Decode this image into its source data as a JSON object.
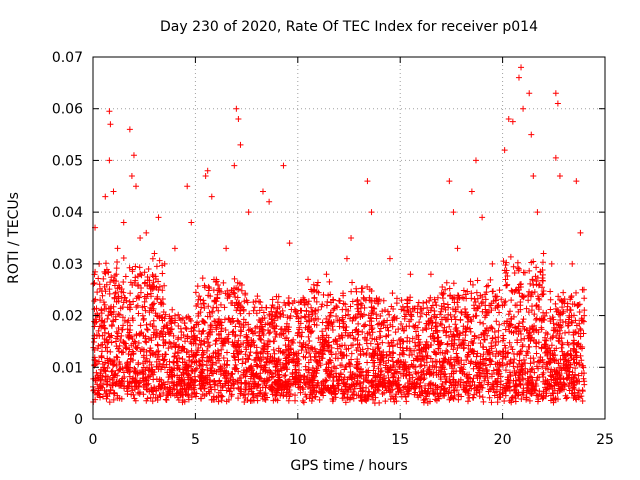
{
  "chart_data": {
    "type": "scatter",
    "title": "Day 230 of 2020, Rate Of TEC Index for receiver p014",
    "xlabel": "GPS time / hours",
    "ylabel": "ROTI / TECUs",
    "xlim": [
      0,
      25
    ],
    "ylim": [
      0,
      0.07
    ],
    "xticks": [
      0,
      5,
      10,
      15,
      20,
      25
    ],
    "xtick_labels": [
      "0",
      "5",
      "10",
      "15",
      "20",
      "25"
    ],
    "yticks": [
      0,
      0.01,
      0.02,
      0.03,
      0.04,
      0.05,
      0.06,
      0.07
    ],
    "ytick_labels": [
      "0",
      "0.01",
      "0.02",
      "0.03",
      "0.04",
      "0.05",
      "0.06",
      "0.07"
    ],
    "grid": true,
    "marker": "+",
    "series_color": "#ff0000",
    "data_x_range": [
      0,
      24
    ],
    "points": [
      [
        0.1,
        0.037
      ],
      [
        0.3,
        0.03
      ],
      [
        0.4,
        0.021
      ],
      [
        0.6,
        0.043
      ],
      [
        0.8,
        0.0595
      ],
      [
        0.85,
        0.057
      ],
      [
        0.8,
        0.05
      ],
      [
        1.0,
        0.044
      ],
      [
        1.2,
        0.033
      ],
      [
        1.3,
        0.004
      ],
      [
        1.5,
        0.038
      ],
      [
        1.8,
        0.056
      ],
      [
        1.9,
        0.047
      ],
      [
        2.0,
        0.051
      ],
      [
        2.1,
        0.045
      ],
      [
        2.3,
        0.035
      ],
      [
        2.6,
        0.036
      ],
      [
        3.0,
        0.032
      ],
      [
        3.2,
        0.039
      ],
      [
        3.5,
        0.03
      ],
      [
        4.0,
        0.033
      ],
      [
        4.6,
        0.045
      ],
      [
        4.8,
        0.038
      ],
      [
        5.5,
        0.047
      ],
      [
        5.6,
        0.048
      ],
      [
        5.8,
        0.043
      ],
      [
        6.5,
        0.033
      ],
      [
        6.9,
        0.049
      ],
      [
        7.0,
        0.06
      ],
      [
        7.1,
        0.058
      ],
      [
        7.2,
        0.053
      ],
      [
        7.6,
        0.04
      ],
      [
        8.3,
        0.044
      ],
      [
        8.6,
        0.042
      ],
      [
        9.3,
        0.049
      ],
      [
        9.6,
        0.034
      ],
      [
        10.5,
        0.027
      ],
      [
        11.4,
        0.028
      ],
      [
        12.4,
        0.031
      ],
      [
        12.6,
        0.035
      ],
      [
        13.4,
        0.046
      ],
      [
        13.6,
        0.04
      ],
      [
        14.5,
        0.031
      ],
      [
        15.5,
        0.028
      ],
      [
        16.5,
        0.028
      ],
      [
        17.4,
        0.046
      ],
      [
        17.6,
        0.04
      ],
      [
        17.8,
        0.033
      ],
      [
        18.5,
        0.044
      ],
      [
        18.7,
        0.05
      ],
      [
        19.0,
        0.039
      ],
      [
        19.5,
        0.03
      ],
      [
        20.1,
        0.052
      ],
      [
        20.3,
        0.058
      ],
      [
        20.5,
        0.0575
      ],
      [
        20.8,
        0.066
      ],
      [
        20.9,
        0.068
      ],
      [
        21.0,
        0.06
      ],
      [
        21.3,
        0.063
      ],
      [
        21.4,
        0.055
      ],
      [
        21.5,
        0.047
      ],
      [
        21.7,
        0.04
      ],
      [
        22.0,
        0.032
      ],
      [
        22.4,
        0.03
      ],
      [
        22.6,
        0.063
      ],
      [
        22.7,
        0.061
      ],
      [
        22.6,
        0.0505
      ],
      [
        22.8,
        0.047
      ],
      [
        23.4,
        0.03
      ],
      [
        23.6,
        0.046
      ],
      [
        23.8,
        0.036
      ],
      [
        23.9,
        0.025
      ]
    ]
  }
}
